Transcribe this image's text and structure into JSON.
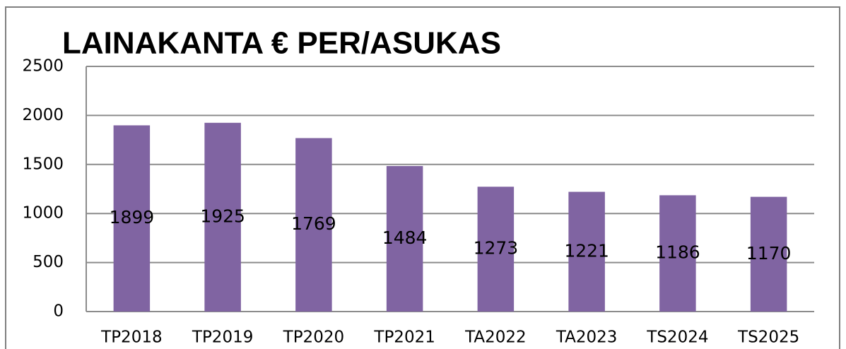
{
  "chart_data": {
    "type": "bar",
    "title": "LAINAKANTA € PER/ASUKAS",
    "categories": [
      "TP2018",
      "TP2019",
      "TP2020",
      "TP2021",
      "TA2022",
      "TA2023",
      "TS2024",
      "TS2025"
    ],
    "values": [
      1899,
      1925,
      1769,
      1484,
      1273,
      1221,
      1186,
      1170
    ],
    "color": "#8064a2",
    "ylim": [
      0,
      2500
    ],
    "yticks": [
      0,
      500,
      1000,
      1500,
      2000,
      2500
    ],
    "grid": true
  }
}
